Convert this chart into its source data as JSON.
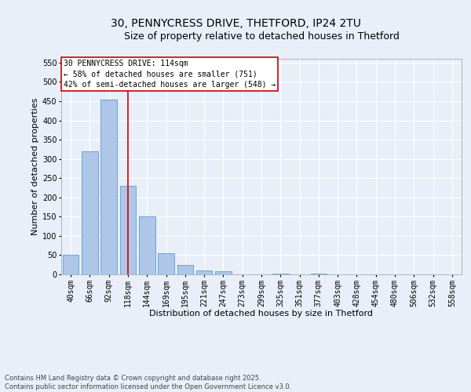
{
  "title1": "30, PENNYCRESS DRIVE, THETFORD, IP24 2TU",
  "title2": "Size of property relative to detached houses in Thetford",
  "xlabel": "Distribution of detached houses by size in Thetford",
  "ylabel": "Number of detached properties",
  "categories": [
    "40sqm",
    "66sqm",
    "92sqm",
    "118sqm",
    "144sqm",
    "169sqm",
    "195sqm",
    "221sqm",
    "247sqm",
    "273sqm",
    "299sqm",
    "325sqm",
    "351sqm",
    "377sqm",
    "403sqm",
    "428sqm",
    "454sqm",
    "480sqm",
    "506sqm",
    "532sqm",
    "558sqm"
  ],
  "values": [
    50,
    320,
    455,
    230,
    150,
    55,
    25,
    10,
    8,
    0,
    0,
    3,
    0,
    2,
    0,
    0,
    0,
    0,
    0,
    0,
    0
  ],
  "bar_color": "#aec6e8",
  "bar_edge_color": "#5b9bd5",
  "red_line_index": 3,
  "red_line_color": "#cc0000",
  "annotation_line1": "30 PENNYCRESS DRIVE: 114sqm",
  "annotation_line2": "← 58% of detached houses are smaller (751)",
  "annotation_line3": "42% of semi-detached houses are larger (548) →",
  "annotation_box_color": "#cc0000",
  "annotation_box_bg": "#ffffff",
  "ylim": [
    0,
    560
  ],
  "yticks": [
    0,
    50,
    100,
    150,
    200,
    250,
    300,
    350,
    400,
    450,
    500,
    550
  ],
  "background_color": "#e8eff8",
  "grid_color": "#ffffff",
  "footer_text": "Contains HM Land Registry data © Crown copyright and database right 2025.\nContains public sector information licensed under the Open Government Licence v3.0.",
  "title1_fontsize": 10,
  "title2_fontsize": 9,
  "xlabel_fontsize": 8,
  "ylabel_fontsize": 8,
  "tick_fontsize": 7,
  "annotation_fontsize": 7,
  "footer_fontsize": 6
}
